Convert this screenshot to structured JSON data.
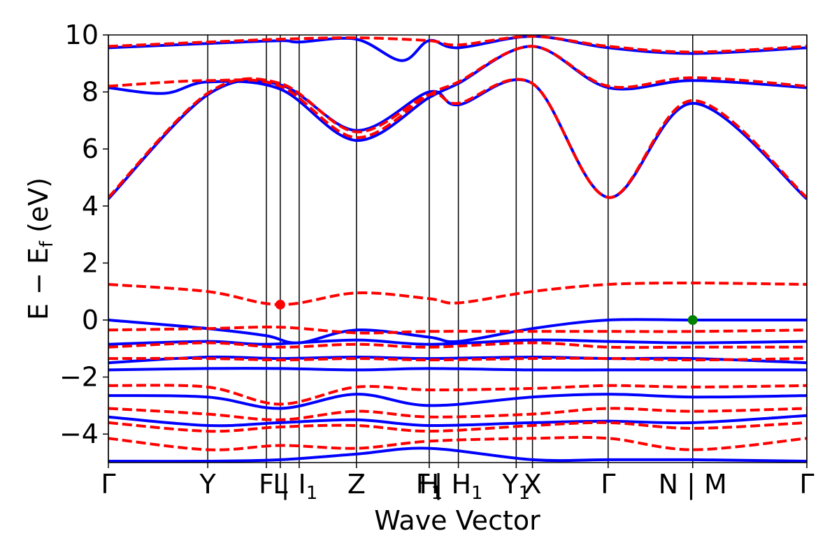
{
  "chart_data": {
    "type": "line",
    "xlabel": "Wave Vector",
    "ylabel": "E − E",
    "ylabel_sub": "f",
    "ylabel_unit": " (eV)",
    "ylim": [
      -5,
      10
    ],
    "yticks": [
      -4,
      -2,
      0,
      2,
      4,
      6,
      8,
      10
    ],
    "ytick_labels": [
      "−4",
      "−2",
      "0",
      "2",
      "4",
      "6",
      "8",
      "10"
    ],
    "xlim": [
      0,
      1
    ],
    "kpoint_positions": [
      0,
      0.1423,
      0.2262,
      0.2461,
      0.2732,
      0.3552,
      0.4594,
      0.5011,
      0.5839,
      0.6072,
      0.7155,
      0.8366,
      1.0
    ],
    "kpoint_labels": [
      {
        "main": "Γ",
        "x": 0
      },
      {
        "main": "Y",
        "x": 0.1423
      },
      {
        "main": "F",
        "x": 0.2262
      },
      {
        "main": "L",
        "x": 0.2461
      },
      {
        "main": "| I",
        "sub": "1",
        "x": 0.2732
      },
      {
        "main": "Z",
        "x": 0.3552
      },
      {
        "main": "F",
        "sub": "1",
        "x": 0.4594
      },
      {
        "main": "H",
        "x": 0.4594
      },
      {
        "main": "| H",
        "sub": "1",
        "x": 0.5011
      },
      {
        "main": "Y",
        "sub": "1",
        "x": 0.5839
      },
      {
        "main": "X",
        "x": 0.6072
      },
      {
        "main": "Γ",
        "x": 0.7155
      },
      {
        "main": "N | M",
        "x": 0.8366
      },
      {
        "main": "Γ",
        "x": 1.0
      }
    ],
    "colors": {
      "spin_up": "#0000ff",
      "spin_down": "#ff0000",
      "cbm_marker": "#ff0000",
      "vbm_marker": "#008000",
      "kpoint_line": "#000000"
    },
    "markers": [
      {
        "name": "cbm-marker",
        "x": 0.2461,
        "y": 0.54,
        "color": "#ff0000"
      },
      {
        "name": "vbm-marker",
        "x": 0.8366,
        "y": 0.0,
        "color": "#008000"
      }
    ],
    "series": [
      {
        "color": "blue",
        "style": "solid",
        "x": [
          0,
          0.142,
          0.246,
          0.355,
          0.459,
          0.501,
          0.607,
          0.716,
          0.837,
          1
        ],
        "y": [
          4.25,
          7.9,
          8.25,
          6.65,
          8.0,
          7.55,
          8.3,
          4.3,
          7.6,
          4.25
        ]
      },
      {
        "color": "blue",
        "style": "solid",
        "x": [
          0,
          0.08,
          0.142,
          0.246,
          0.355,
          0.459,
          0.501,
          0.607,
          0.716,
          0.837,
          1
        ],
        "y": [
          8.15,
          7.95,
          8.35,
          8.1,
          6.3,
          7.8,
          8.3,
          9.6,
          8.15,
          8.4,
          8.15
        ]
      },
      {
        "color": "blue",
        "style": "solid",
        "x": [
          0,
          0.142,
          0.246,
          0.273,
          0.355,
          0.42,
          0.459,
          0.501,
          0.607,
          0.716,
          0.837,
          1
        ],
        "y": [
          9.55,
          9.7,
          9.8,
          9.75,
          9.85,
          9.1,
          9.8,
          9.55,
          9.95,
          9.55,
          9.35,
          9.55
        ]
      },
      {
        "color": "blue",
        "style": "solid",
        "x": [
          0,
          0.142,
          0.226,
          0.273,
          0.355,
          0.459,
          0.501,
          0.607,
          0.716,
          0.837,
          1
        ],
        "y": [
          0.0,
          -0.3,
          -0.55,
          -0.8,
          -0.35,
          -0.6,
          -0.75,
          -0.3,
          0.0,
          0.0,
          0.0
        ]
      },
      {
        "color": "blue",
        "style": "solid",
        "x": [
          0,
          0.142,
          0.226,
          0.355,
          0.459,
          0.607,
          0.716,
          0.837,
          1
        ],
        "y": [
          -0.85,
          -0.75,
          -0.85,
          -0.7,
          -0.85,
          -0.7,
          -0.75,
          -0.8,
          -0.75
        ]
      },
      {
        "color": "blue",
        "style": "solid",
        "x": [
          0,
          0.142,
          0.246,
          0.355,
          0.459,
          0.607,
          0.716,
          0.837,
          1
        ],
        "y": [
          -1.5,
          -1.3,
          -1.35,
          -1.3,
          -1.35,
          -1.3,
          -1.35,
          -1.35,
          -1.5
        ]
      },
      {
        "color": "blue",
        "style": "solid",
        "x": [
          0,
          0.142,
          0.246,
          0.355,
          0.459,
          0.607,
          0.716,
          0.837,
          1
        ],
        "y": [
          -1.75,
          -1.7,
          -1.7,
          -1.75,
          -1.7,
          -1.75,
          -1.75,
          -1.75,
          -1.75
        ]
      },
      {
        "color": "blue",
        "style": "solid",
        "x": [
          0,
          0.142,
          0.246,
          0.355,
          0.459,
          0.607,
          0.716,
          0.837,
          1
        ],
        "y": [
          -2.65,
          -2.7,
          -3.1,
          -2.6,
          -3.0,
          -2.7,
          -2.6,
          -2.7,
          -2.65
        ]
      },
      {
        "color": "blue",
        "style": "solid",
        "x": [
          0,
          0.142,
          0.246,
          0.355,
          0.459,
          0.607,
          0.716,
          0.837,
          1
        ],
        "y": [
          -3.4,
          -3.7,
          -3.6,
          -3.5,
          -3.7,
          -3.6,
          -3.55,
          -3.6,
          -3.35
        ]
      },
      {
        "color": "blue",
        "style": "solid",
        "x": [
          0,
          0.142,
          0.246,
          0.355,
          0.459,
          0.607,
          0.716,
          0.837,
          1
        ],
        "y": [
          -4.95,
          -4.95,
          -4.9,
          -4.7,
          -4.5,
          -4.9,
          -4.9,
          -4.9,
          -4.95
        ]
      },
      {
        "color": "red",
        "style": "dashed",
        "x": [
          0,
          0.142,
          0.246,
          0.355,
          0.459,
          0.501,
          0.607,
          0.716,
          0.837,
          1
        ],
        "y": [
          4.3,
          7.95,
          8.3,
          6.6,
          7.9,
          7.6,
          8.3,
          4.3,
          7.7,
          4.3
        ]
      },
      {
        "color": "red",
        "style": "dashed",
        "x": [
          0,
          0.142,
          0.246,
          0.355,
          0.459,
          0.501,
          0.607,
          0.716,
          0.837,
          1
        ],
        "y": [
          8.2,
          8.4,
          8.2,
          6.4,
          7.9,
          8.35,
          9.6,
          8.2,
          8.5,
          8.2
        ]
      },
      {
        "color": "red",
        "style": "dashed",
        "x": [
          0,
          0.142,
          0.246,
          0.355,
          0.459,
          0.501,
          0.607,
          0.716,
          0.837,
          1
        ],
        "y": [
          9.6,
          9.75,
          9.85,
          9.9,
          9.8,
          9.65,
          9.95,
          9.6,
          9.4,
          9.6
        ]
      },
      {
        "color": "red",
        "style": "dashed",
        "x": [
          0,
          0.142,
          0.246,
          0.355,
          0.459,
          0.501,
          0.607,
          0.716,
          0.837,
          1
        ],
        "y": [
          1.25,
          1.0,
          0.54,
          0.95,
          0.75,
          0.6,
          1.0,
          1.25,
          1.3,
          1.25
        ]
      },
      {
        "color": "red",
        "style": "dashed",
        "x": [
          0,
          0.142,
          0.246,
          0.355,
          0.459,
          0.607,
          0.716,
          0.837,
          1
        ],
        "y": [
          -0.35,
          -0.3,
          -0.25,
          -0.45,
          -0.4,
          -0.4,
          -0.4,
          -0.4,
          -0.35
        ]
      },
      {
        "color": "red",
        "style": "dashed",
        "x": [
          0,
          0.142,
          0.246,
          0.355,
          0.459,
          0.607,
          0.716,
          0.837,
          1
        ],
        "y": [
          -0.95,
          -0.8,
          -0.95,
          -0.85,
          -0.95,
          -0.8,
          -0.95,
          -0.95,
          -0.95
        ]
      },
      {
        "color": "red",
        "style": "dashed",
        "x": [
          0,
          0.142,
          0.246,
          0.355,
          0.459,
          0.607,
          0.716,
          0.837,
          1
        ],
        "y": [
          -1.35,
          -1.35,
          -1.4,
          -1.35,
          -1.4,
          -1.35,
          -1.35,
          -1.4,
          -1.35
        ]
      },
      {
        "color": "red",
        "style": "dashed",
        "x": [
          0,
          0.142,
          0.246,
          0.355,
          0.459,
          0.607,
          0.716,
          0.837,
          1
        ],
        "y": [
          -2.3,
          -2.35,
          -2.95,
          -2.35,
          -2.45,
          -2.4,
          -2.3,
          -2.35,
          -2.3
        ]
      },
      {
        "color": "red",
        "style": "dashed",
        "x": [
          0,
          0.142,
          0.246,
          0.355,
          0.459,
          0.607,
          0.716,
          0.837,
          1
        ],
        "y": [
          -3.1,
          -3.3,
          -3.5,
          -3.2,
          -3.4,
          -3.3,
          -3.1,
          -3.2,
          -3.1
        ]
      },
      {
        "color": "red",
        "style": "dashed",
        "x": [
          0,
          0.142,
          0.246,
          0.355,
          0.459,
          0.607,
          0.716,
          0.837,
          1
        ],
        "y": [
          -3.6,
          -3.9,
          -3.75,
          -3.7,
          -3.9,
          -3.7,
          -3.6,
          -3.8,
          -3.6
        ]
      },
      {
        "color": "red",
        "style": "dashed",
        "x": [
          0,
          0.142,
          0.246,
          0.355,
          0.459,
          0.607,
          0.716,
          0.837,
          1
        ],
        "y": [
          -4.15,
          -4.55,
          -4.4,
          -4.5,
          -4.25,
          -4.15,
          -4.15,
          -4.55,
          -4.15
        ]
      }
    ]
  }
}
